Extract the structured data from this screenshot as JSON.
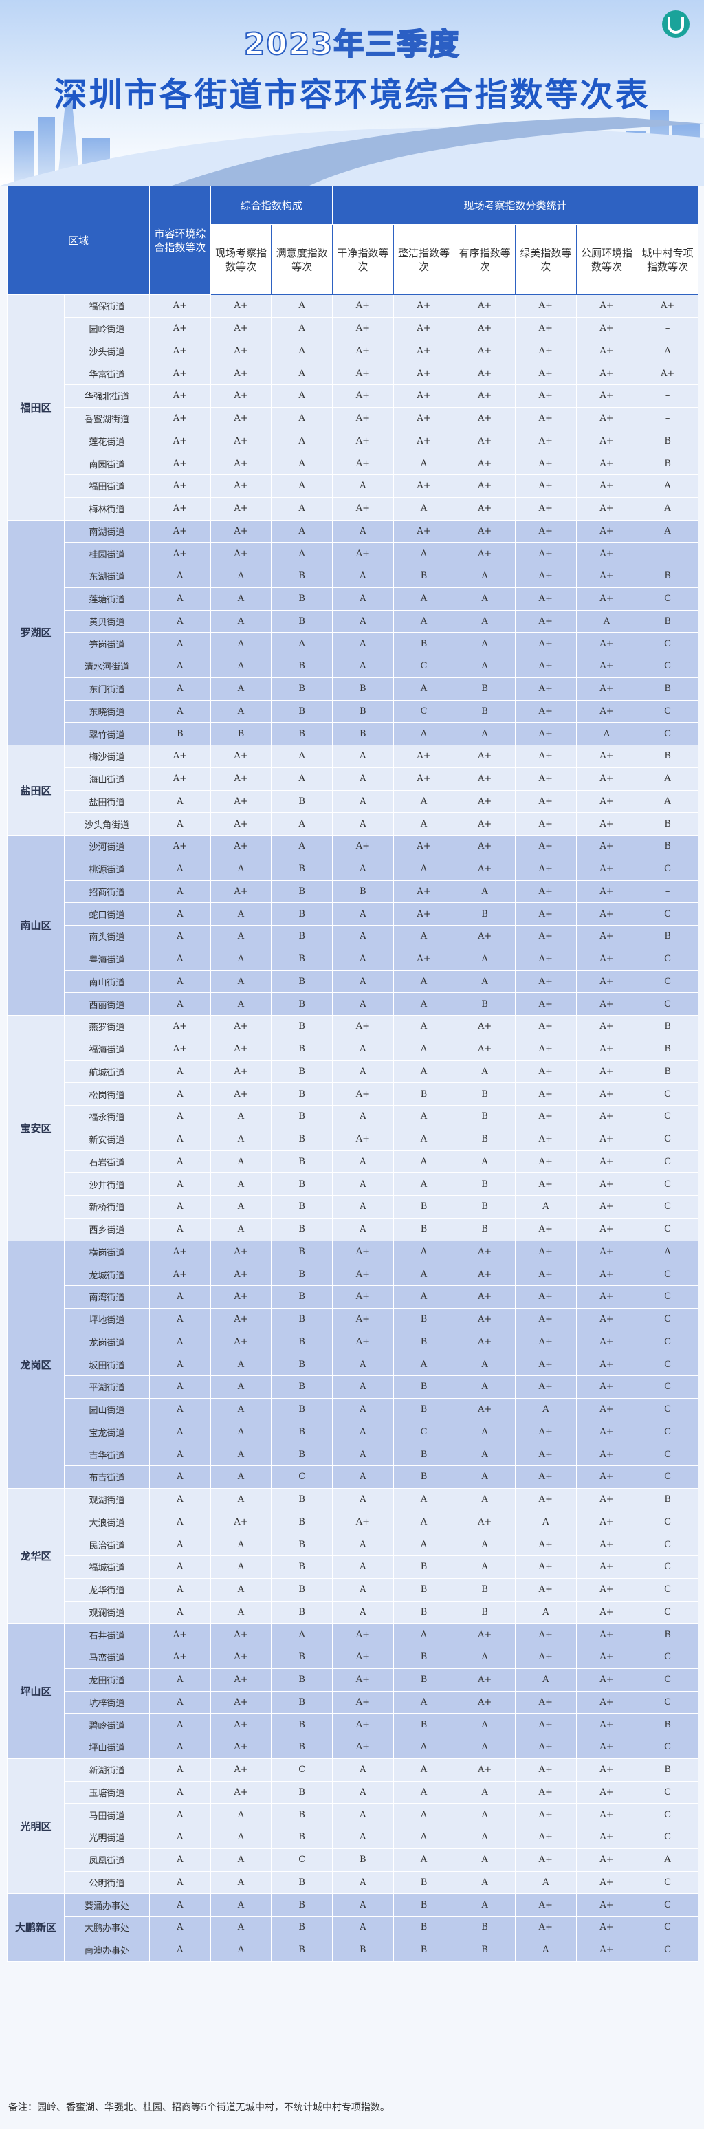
{
  "header": {
    "year": "2023年三季度",
    "title": "深圳市各街道市容环境综合指数等次表"
  },
  "table": {
    "columns": {
      "district": "区域",
      "composite": "市容环境综合指数等次",
      "composition": "综合指数构成",
      "onsite": "现场考察指数等次",
      "satisfaction": "满意度指数等次",
      "classification": "现场考察指数分类统计",
      "clean": "干净指数等次",
      "tidy": "整洁指数等次",
      "orderly": "有序指数等次",
      "green": "绿美指数等次",
      "toilet": "公厕环境指数等次",
      "village": "城中村专项指数等次"
    },
    "groups": [
      {
        "district": "福田区",
        "rows": [
          [
            "福保街道",
            "A+",
            "A+",
            "A",
            "A+",
            "A+",
            "A+",
            "A+",
            "A+",
            "A+"
          ],
          [
            "园岭街道",
            "A+",
            "A+",
            "A",
            "A+",
            "A+",
            "A+",
            "A+",
            "A+",
            "–"
          ],
          [
            "沙头街道",
            "A+",
            "A+",
            "A",
            "A+",
            "A+",
            "A+",
            "A+",
            "A+",
            "A"
          ],
          [
            "华富街道",
            "A+",
            "A+",
            "A",
            "A+",
            "A+",
            "A+",
            "A+",
            "A+",
            "A+"
          ],
          [
            "华强北街道",
            "A+",
            "A+",
            "A",
            "A+",
            "A+",
            "A+",
            "A+",
            "A+",
            "–"
          ],
          [
            "香蜜湖街道",
            "A+",
            "A+",
            "A",
            "A+",
            "A+",
            "A+",
            "A+",
            "A+",
            "–"
          ],
          [
            "莲花街道",
            "A+",
            "A+",
            "A",
            "A+",
            "A+",
            "A+",
            "A+",
            "A+",
            "B"
          ],
          [
            "南园街道",
            "A+",
            "A+",
            "A",
            "A+",
            "A",
            "A+",
            "A+",
            "A+",
            "B"
          ],
          [
            "福田街道",
            "A+",
            "A+",
            "A",
            "A",
            "A+",
            "A+",
            "A+",
            "A+",
            "A"
          ],
          [
            "梅林街道",
            "A+",
            "A+",
            "A",
            "A+",
            "A",
            "A+",
            "A+",
            "A+",
            "A"
          ]
        ]
      },
      {
        "district": "罗湖区",
        "rows": [
          [
            "南湖街道",
            "A+",
            "A+",
            "A",
            "A",
            "A+",
            "A+",
            "A+",
            "A+",
            "A"
          ],
          [
            "桂园街道",
            "A+",
            "A+",
            "A",
            "A+",
            "A",
            "A+",
            "A+",
            "A+",
            "–"
          ],
          [
            "东湖街道",
            "A",
            "A",
            "B",
            "A",
            "B",
            "A",
            "A+",
            "A+",
            "B"
          ],
          [
            "莲塘街道",
            "A",
            "A",
            "B",
            "A",
            "A",
            "A",
            "A+",
            "A+",
            "C"
          ],
          [
            "黄贝街道",
            "A",
            "A",
            "B",
            "A",
            "A",
            "A",
            "A+",
            "A",
            "B"
          ],
          [
            "笋岗街道",
            "A",
            "A",
            "A",
            "A",
            "B",
            "A",
            "A+",
            "A+",
            "C"
          ],
          [
            "清水河街道",
            "A",
            "A",
            "B",
            "A",
            "C",
            "A",
            "A+",
            "A+",
            "C"
          ],
          [
            "东门街道",
            "A",
            "A",
            "B",
            "B",
            "A",
            "B",
            "A+",
            "A+",
            "B"
          ],
          [
            "东晓街道",
            "A",
            "A",
            "B",
            "B",
            "C",
            "B",
            "A+",
            "A+",
            "C"
          ],
          [
            "翠竹街道",
            "B",
            "B",
            "B",
            "B",
            "A",
            "A",
            "A+",
            "A",
            "C"
          ]
        ]
      },
      {
        "district": "盐田区",
        "rows": [
          [
            "梅沙街道",
            "A+",
            "A+",
            "A",
            "A",
            "A+",
            "A+",
            "A+",
            "A+",
            "B"
          ],
          [
            "海山街道",
            "A+",
            "A+",
            "A",
            "A",
            "A+",
            "A+",
            "A+",
            "A+",
            "A"
          ],
          [
            "盐田街道",
            "A",
            "A+",
            "B",
            "A",
            "A",
            "A+",
            "A+",
            "A+",
            "A"
          ],
          [
            "沙头角街道",
            "A",
            "A+",
            "A",
            "A",
            "A",
            "A+",
            "A+",
            "A+",
            "B"
          ]
        ]
      },
      {
        "district": "南山区",
        "rows": [
          [
            "沙河街道",
            "A+",
            "A+",
            "A",
            "A+",
            "A+",
            "A+",
            "A+",
            "A+",
            "B"
          ],
          [
            "桃源街道",
            "A",
            "A",
            "B",
            "A",
            "A",
            "A+",
            "A+",
            "A+",
            "C"
          ],
          [
            "招商街道",
            "A",
            "A+",
            "B",
            "B",
            "A+",
            "A",
            "A+",
            "A+",
            "–"
          ],
          [
            "蛇口街道",
            "A",
            "A",
            "B",
            "A",
            "A+",
            "B",
            "A+",
            "A+",
            "C"
          ],
          [
            "南头街道",
            "A",
            "A",
            "B",
            "A",
            "A",
            "A+",
            "A+",
            "A+",
            "B"
          ],
          [
            "粤海街道",
            "A",
            "A",
            "B",
            "A",
            "A+",
            "A",
            "A+",
            "A+",
            "C"
          ],
          [
            "南山街道",
            "A",
            "A",
            "B",
            "A",
            "A",
            "A",
            "A+",
            "A+",
            "C"
          ],
          [
            "西丽街道",
            "A",
            "A",
            "B",
            "A",
            "A",
            "B",
            "A+",
            "A+",
            "C"
          ]
        ]
      },
      {
        "district": "宝安区",
        "rows": [
          [
            "燕罗街道",
            "A+",
            "A+",
            "B",
            "A+",
            "A",
            "A+",
            "A+",
            "A+",
            "B"
          ],
          [
            "福海街道",
            "A+",
            "A+",
            "B",
            "A",
            "A",
            "A+",
            "A+",
            "A+",
            "B"
          ],
          [
            "航城街道",
            "A",
            "A+",
            "B",
            "A",
            "A",
            "A",
            "A+",
            "A+",
            "B"
          ],
          [
            "松岗街道",
            "A",
            "A+",
            "B",
            "A+",
            "B",
            "B",
            "A+",
            "A+",
            "C"
          ],
          [
            "福永街道",
            "A",
            "A",
            "B",
            "A",
            "A",
            "B",
            "A+",
            "A+",
            "C"
          ],
          [
            "新安街道",
            "A",
            "A",
            "B",
            "A+",
            "A",
            "B",
            "A+",
            "A+",
            "C"
          ],
          [
            "石岩街道",
            "A",
            "A",
            "B",
            "A",
            "A",
            "A",
            "A+",
            "A+",
            "C"
          ],
          [
            "沙井街道",
            "A",
            "A",
            "B",
            "A",
            "A",
            "B",
            "A+",
            "A+",
            "C"
          ],
          [
            "新桥街道",
            "A",
            "A",
            "B",
            "A",
            "B",
            "B",
            "A",
            "A+",
            "C"
          ],
          [
            "西乡街道",
            "A",
            "A",
            "B",
            "A",
            "B",
            "B",
            "A+",
            "A+",
            "C"
          ]
        ]
      },
      {
        "district": "龙岗区",
        "rows": [
          [
            "横岗街道",
            "A+",
            "A+",
            "B",
            "A+",
            "A",
            "A+",
            "A+",
            "A+",
            "A"
          ],
          [
            "龙城街道",
            "A+",
            "A+",
            "B",
            "A+",
            "A",
            "A+",
            "A+",
            "A+",
            "C"
          ],
          [
            "南湾街道",
            "A",
            "A+",
            "B",
            "A+",
            "A",
            "A+",
            "A+",
            "A+",
            "C"
          ],
          [
            "坪地街道",
            "A",
            "A+",
            "B",
            "A+",
            "B",
            "A+",
            "A+",
            "A+",
            "C"
          ],
          [
            "龙岗街道",
            "A",
            "A+",
            "B",
            "A+",
            "B",
            "A+",
            "A+",
            "A+",
            "C"
          ],
          [
            "坂田街道",
            "A",
            "A",
            "B",
            "A",
            "A",
            "A",
            "A+",
            "A+",
            "C"
          ],
          [
            "平湖街道",
            "A",
            "A",
            "B",
            "A",
            "B",
            "A",
            "A+",
            "A+",
            "C"
          ],
          [
            "园山街道",
            "A",
            "A",
            "B",
            "A",
            "B",
            "A+",
            "A",
            "A+",
            "C"
          ],
          [
            "宝龙街道",
            "A",
            "A",
            "B",
            "A",
            "C",
            "A",
            "A+",
            "A+",
            "C"
          ],
          [
            "吉华街道",
            "A",
            "A",
            "B",
            "A",
            "B",
            "A",
            "A+",
            "A+",
            "C"
          ],
          [
            "布吉街道",
            "A",
            "A",
            "C",
            "A",
            "B",
            "A",
            "A+",
            "A+",
            "C"
          ]
        ]
      },
      {
        "district": "龙华区",
        "rows": [
          [
            "观湖街道",
            "A",
            "A",
            "B",
            "A",
            "A",
            "A",
            "A+",
            "A+",
            "B"
          ],
          [
            "大浪街道",
            "A",
            "A+",
            "B",
            "A+",
            "A",
            "A+",
            "A",
            "A+",
            "C"
          ],
          [
            "民治街道",
            "A",
            "A",
            "B",
            "A",
            "A",
            "A",
            "A+",
            "A+",
            "C"
          ],
          [
            "福城街道",
            "A",
            "A",
            "B",
            "A",
            "B",
            "A",
            "A+",
            "A+",
            "C"
          ],
          [
            "龙华街道",
            "A",
            "A",
            "B",
            "A",
            "B",
            "B",
            "A+",
            "A+",
            "C"
          ],
          [
            "观澜街道",
            "A",
            "A",
            "B",
            "A",
            "B",
            "B",
            "A",
            "A+",
            "C"
          ]
        ]
      },
      {
        "district": "坪山区",
        "rows": [
          [
            "石井街道",
            "A+",
            "A+",
            "A",
            "A+",
            "A",
            "A+",
            "A+",
            "A+",
            "B"
          ],
          [
            "马峦街道",
            "A+",
            "A+",
            "B",
            "A+",
            "B",
            "A",
            "A+",
            "A+",
            "C"
          ],
          [
            "龙田街道",
            "A",
            "A+",
            "B",
            "A+",
            "B",
            "A+",
            "A",
            "A+",
            "C"
          ],
          [
            "坑梓街道",
            "A",
            "A+",
            "B",
            "A+",
            "A",
            "A+",
            "A+",
            "A+",
            "C"
          ],
          [
            "碧岭街道",
            "A",
            "A+",
            "B",
            "A+",
            "B",
            "A",
            "A+",
            "A+",
            "B"
          ],
          [
            "坪山街道",
            "A",
            "A+",
            "B",
            "A+",
            "A",
            "A",
            "A+",
            "A+",
            "C"
          ]
        ]
      },
      {
        "district": "光明区",
        "rows": [
          [
            "新湖街道",
            "A",
            "A+",
            "C",
            "A",
            "A",
            "A+",
            "A+",
            "A+",
            "B"
          ],
          [
            "玉塘街道",
            "A",
            "A+",
            "B",
            "A",
            "A",
            "A",
            "A+",
            "A+",
            "C"
          ],
          [
            "马田街道",
            "A",
            "A",
            "B",
            "A",
            "A",
            "A",
            "A+",
            "A+",
            "C"
          ],
          [
            "光明街道",
            "A",
            "A",
            "B",
            "A",
            "A",
            "A",
            "A+",
            "A+",
            "C"
          ],
          [
            "凤凰街道",
            "A",
            "A",
            "C",
            "B",
            "A",
            "A",
            "A+",
            "A+",
            "A"
          ],
          [
            "公明街道",
            "A",
            "A",
            "B",
            "A",
            "B",
            "A",
            "A",
            "A+",
            "C"
          ]
        ]
      },
      {
        "district": "大鹏新区",
        "rows": [
          [
            "葵涌办事处",
            "A",
            "A",
            "B",
            "A",
            "B",
            "A",
            "A+",
            "A+",
            "C"
          ],
          [
            "大鹏办事处",
            "A",
            "A",
            "B",
            "A",
            "B",
            "B",
            "A+",
            "A+",
            "C"
          ],
          [
            "南澳办事处",
            "A",
            "A",
            "B",
            "B",
            "B",
            "B",
            "A",
            "A+",
            "C"
          ]
        ]
      }
    ]
  },
  "note": "备注：园岭、香蜜湖、华强北、桂园、招商等5个街道无城中村，不统计城中村专项指数。"
}
